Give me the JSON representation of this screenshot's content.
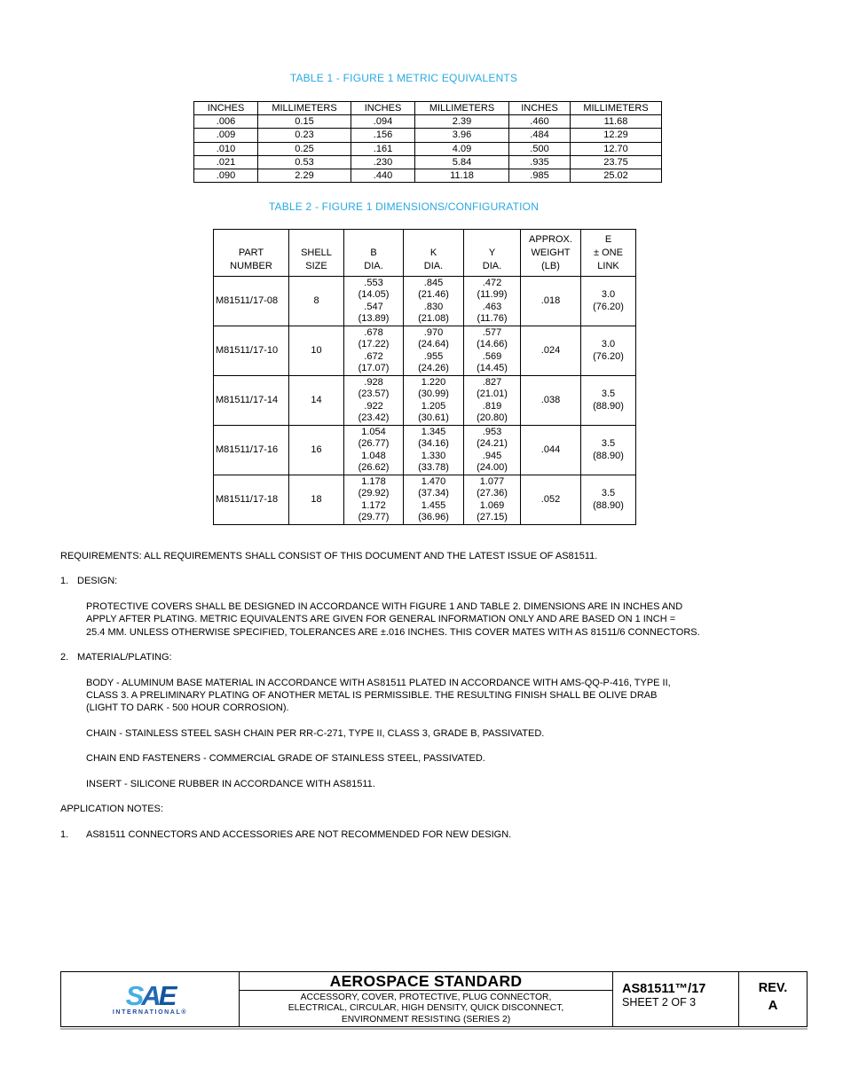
{
  "colors": {
    "table_title_blue": "#29A9E1",
    "sae_light_blue": "#45AFE2",
    "sae_mid_blue": "#2268B2",
    "sae_dark_blue": "#11559F",
    "sae_text_blue": "#214C9C",
    "footer_shadow_gray": "#b5b5b5"
  },
  "table1": {
    "title": "TABLE 1 - FIGURE 1 METRIC EQUIVALENTS",
    "headers": [
      "INCHES",
      "MILLIMETERS",
      "INCHES",
      "MILLIMETERS",
      "INCHES",
      "MILLIMETERS"
    ],
    "rows": [
      [
        ".006",
        "0.15",
        ".094",
        "2.39",
        ".460",
        "11.68"
      ],
      [
        ".009",
        "0.23",
        ".156",
        "3.96",
        ".484",
        "12.29"
      ],
      [
        ".010",
        "0.25",
        ".161",
        "4.09",
        ".500",
        "12.70"
      ],
      [
        ".021",
        "0.53",
        ".230",
        "5.84",
        ".935",
        "23.75"
      ],
      [
        ".090",
        "2.29",
        ".440",
        "11.18",
        ".985",
        "25.02"
      ]
    ]
  },
  "table2": {
    "title": "TABLE 2 - FIGURE 1 DIMENSIONS/CONFIGURATION",
    "headers": [
      [
        "PART",
        "NUMBER"
      ],
      [
        "SHELL",
        "SIZE"
      ],
      [
        "B",
        "DIA."
      ],
      [
        "K",
        "DIA."
      ],
      [
        "Y",
        "DIA."
      ],
      [
        "APPROX.",
        "WEIGHT",
        "(LB)"
      ],
      [
        "E",
        "± ONE",
        "LINK"
      ]
    ],
    "rows": [
      [
        "M81511/17-08",
        "8",
        [
          ".553",
          "(14.05)",
          ".547",
          "(13.89)"
        ],
        [
          ".845",
          "(21.46)",
          ".830",
          "(21.08)"
        ],
        [
          ".472",
          "(11.99)",
          ".463",
          "(11.76)"
        ],
        ".018",
        [
          "3.0",
          "(76.20)"
        ]
      ],
      [
        "M81511/17-10",
        "10",
        [
          ".678",
          "(17.22)",
          ".672",
          "(17.07)"
        ],
        [
          ".970",
          "(24.64)",
          ".955",
          "(24.26)"
        ],
        [
          ".577",
          "(14.66)",
          ".569",
          "(14.45)"
        ],
        ".024",
        [
          "3.0",
          "(76.20)"
        ]
      ],
      [
        "M81511/17-14",
        "14",
        [
          ".928",
          "(23.57)",
          ".922",
          "(23.42)"
        ],
        [
          "1.220",
          "(30.99)",
          "1.205",
          "(30.61)"
        ],
        [
          ".827",
          "(21.01)",
          ".819",
          "(20.80)"
        ],
        ".038",
        [
          "3.5",
          "(88.90)"
        ]
      ],
      [
        "M81511/17-16",
        "16",
        [
          "1.054",
          "(26.77)",
          "1.048",
          "(26.62)"
        ],
        [
          "1.345",
          "(34.16)",
          "1.330",
          "(33.78)"
        ],
        [
          ".953",
          "(24.21)",
          ".945",
          "(24.00)"
        ],
        ".044",
        [
          "3.5",
          "(88.90)"
        ]
      ],
      [
        "M81511/17-18",
        "18",
        [
          "1.178",
          "(29.92)",
          "1.172",
          "(29.77)"
        ],
        [
          "1.470",
          "(37.34)",
          "1.455",
          "(36.96)"
        ],
        [
          "1.077",
          "(27.36)",
          "1.069",
          "(27.15)"
        ],
        ".052",
        [
          "3.5",
          "(88.90)"
        ]
      ]
    ]
  },
  "content": {
    "requirements_line": "REQUIREMENTS:  ALL REQUIREMENTS SHALL CONSIST OF THIS DOCUMENT AND THE LATEST ISSUE OF AS81511.",
    "section1": {
      "num": "1.",
      "heading": "DESIGN:",
      "para_lines": [
        "PROTECTIVE COVERS SHALL BE DESIGNED IN ACCORDANCE WITH FIGURE 1 AND TABLE 2. DIMENSIONS ARE IN INCHES AND",
        "APPLY AFTER PLATING.  METRIC EQUIVALENTS ARE GIVEN FOR GENERAL INFORMATION ONLY AND ARE BASED ON 1 INCH =",
        "25.4 MM.  UNLESS OTHERWISE SPECIFIED, TOLERANCES ARE ±.016 INCHES. THIS COVER MATES WITH AS 81511/6 CONNECTORS."
      ]
    },
    "section2": {
      "num": "2.",
      "heading": "MATERIAL/PLATING:",
      "body_lines": [
        "BODY - ALUMINUM BASE MATERIAL IN ACCORDANCE WITH AS81511 PLATED IN ACCORDANCE WITH AMS-QQ-P-416, TYPE II,",
        "CLASS 3.  A PRELIMINARY PLATING OF ANOTHER METAL IS PERMISSIBLE.  THE RESULTING FINISH SHALL BE OLIVE DRAB",
        "(LIGHT TO DARK - 500 HOUR CORROSION)."
      ],
      "chain_line": "CHAIN - STAINLESS STEEL SASH CHAIN PER RR-C-271, TYPE II, CLASS 3, GRADE B, PASSIVATED.",
      "chain_end_line": "CHAIN END FASTENERS - COMMERCIAL GRADE OF STAINLESS STEEL, PASSIVATED.",
      "insert_line": "INSERT - SILICONE RUBBER IN ACCORDANCE WITH AS81511."
    },
    "application_notes_heading": "APPLICATION NOTES:",
    "note1": {
      "num": "1.",
      "text": "AS81511 CONNECTORS AND ACCESSORIES ARE NOT RECOMMENDED FOR NEW DESIGN."
    }
  },
  "footer": {
    "logo": {
      "letter_s": "S",
      "letter_a": "A",
      "letter_e": "E",
      "subtext": "INTERNATIONAL®"
    },
    "title": "AEROSPACE STANDARD",
    "subtitle_lines": [
      "ACCESSORY, COVER, PROTECTIVE, PLUG CONNECTOR,",
      "ELECTRICAL, CIRCULAR, HIGH DENSITY, QUICK DISCONNECT,",
      "ENVIRONMENT RESISTING (SERIES 2)"
    ],
    "document_number": "AS81511™/17",
    "sheet": "SHEET 2 OF 3",
    "rev_label": "REV.",
    "rev_value": "A"
  }
}
